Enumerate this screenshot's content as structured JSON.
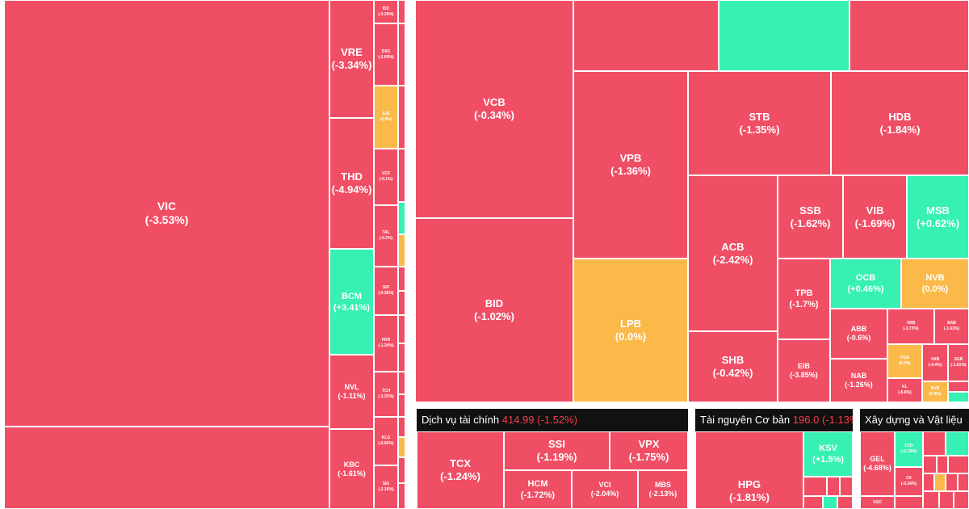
{
  "colors": {
    "down": "#f04e65",
    "up": "#36f0b4",
    "flat": "#fbb94a",
    "header_bg": "#111111",
    "header_value": "#ff3b4b"
  },
  "real_estate": {
    "vic": {
      "symbol": "VIC",
      "change": "(-3.53%)"
    },
    "vre": {
      "symbol": "VRE",
      "change": "(-3.34%)"
    },
    "thd": {
      "symbol": "THD",
      "change": "(-4.94%)"
    },
    "bcm": {
      "symbol": "BCM",
      "change": "(+3.41%)"
    },
    "nvl": {
      "symbol": "NVL",
      "change": "(-1.11%)"
    },
    "kbc": {
      "symbol": "KBC",
      "change": "(-1.61%)"
    },
    "small": [
      {
        "symbol": "IDC",
        "change": "(-0.29%)"
      },
      {
        "symbol": "DXG",
        "change": "(-2.69%)"
      },
      {
        "symbol": "SJS",
        "change": "(0.0%)"
      },
      {
        "symbol": "VCF",
        "change": "(-0.1%)"
      },
      {
        "symbol": "TAL",
        "change": "(-0.2%)"
      },
      {
        "symbol": "SIP",
        "change": "(-0.36%)"
      },
      {
        "symbol": "PDR",
        "change": "(-1.24%)"
      },
      {
        "symbol": "TCH",
        "change": "(-3.33%)"
      },
      {
        "symbol": "KLG",
        "change": "(-0.66%)"
      },
      {
        "symbol": "SIG",
        "change": "(-2.16%)"
      }
    ]
  },
  "banks": {
    "vcb": {
      "symbol": "VCB",
      "change": "(-0.34%)"
    },
    "bid": {
      "symbol": "BID",
      "change": "(-1.02%)"
    },
    "vpb": {
      "symbol": "VPB",
      "change": "(-1.36%)"
    },
    "lpb": {
      "symbol": "LPB",
      "change": "(0.0%)"
    },
    "stb": {
      "symbol": "STB",
      "change": "(-1.35%)"
    },
    "hdb": {
      "symbol": "HDB",
      "change": "(-1.84%)"
    },
    "acb": {
      "symbol": "ACB",
      "change": "(-2.42%)"
    },
    "shb": {
      "symbol": "SHB",
      "change": "(-0.42%)"
    },
    "ssb": {
      "symbol": "SSB",
      "change": "(-1.62%)"
    },
    "vib": {
      "symbol": "VIB",
      "change": "(-1.69%)"
    },
    "msb": {
      "symbol": "MSB",
      "change": "(+0.62%)"
    },
    "tpb": {
      "symbol": "TPB",
      "change": "(-1.7%)"
    },
    "ocb": {
      "symbol": "OCB",
      "change": "(+0.46%)"
    },
    "nvb": {
      "symbol": "NVB",
      "change": "(0.0%)"
    },
    "eib": {
      "symbol": "EIB",
      "change": "(-3.85%)"
    },
    "abb": {
      "symbol": "ABB",
      "change": "(-0.6%)"
    },
    "nab": {
      "symbol": "NAB",
      "change": "(-1.26%)"
    },
    "vbb": {
      "symbol": "VBB",
      "change": "(-3.73%)"
    },
    "bab": {
      "symbol": "BAB",
      "change": "(-1.63%)"
    },
    "pgb": {
      "symbol": "PGB",
      "change": "(0.0%)"
    },
    "vab": {
      "symbol": "VAB",
      "change": "(-4.4%)"
    },
    "sgb": {
      "symbol": "SGB",
      "change": "(-1.61%)"
    },
    "kl": {
      "symbol": "KL",
      "change": "(-5.8%)"
    },
    "bvb": {
      "symbol": "BVB",
      "change": "(0.0%)"
    }
  },
  "financial_services": {
    "header": {
      "name": "Dịch vụ tài chính",
      "value": "414.99",
      "change": "(-1.52%)"
    },
    "tcx": {
      "symbol": "TCX",
      "change": "(-1.24%)"
    },
    "ssi": {
      "symbol": "SSI",
      "change": "(-1.19%)"
    },
    "vpx": {
      "symbol": "VPX",
      "change": "(-1.75%)"
    },
    "hcm": {
      "symbol": "HCM",
      "change": "(-1.72%)"
    },
    "vci": {
      "symbol": "VCI",
      "change": "(-2.04%)"
    },
    "mbs": {
      "symbol": "MBS",
      "change": "(-2.13%)"
    }
  },
  "basic_resources": {
    "header": {
      "name": "Tài nguyên Cơ bản",
      "value": "196.0",
      "change": "(-1.13%)"
    },
    "hpg": {
      "symbol": "HPG",
      "change": "(-1.81%)"
    },
    "ksv": {
      "symbol": "KSV",
      "change": "(+1.5%)"
    }
  },
  "construction": {
    "header": {
      "name": "Xây dựng và Vật liệu"
    },
    "gel": {
      "symbol": "GEL",
      "change": "(-4.68%)"
    },
    "ctd": {
      "symbol": "CTD",
      "change": "(+0.36%)"
    },
    "cii": {
      "symbol": "CII",
      "change": "(-0.34%)"
    },
    "vgc": {
      "symbol": "VGC"
    }
  }
}
